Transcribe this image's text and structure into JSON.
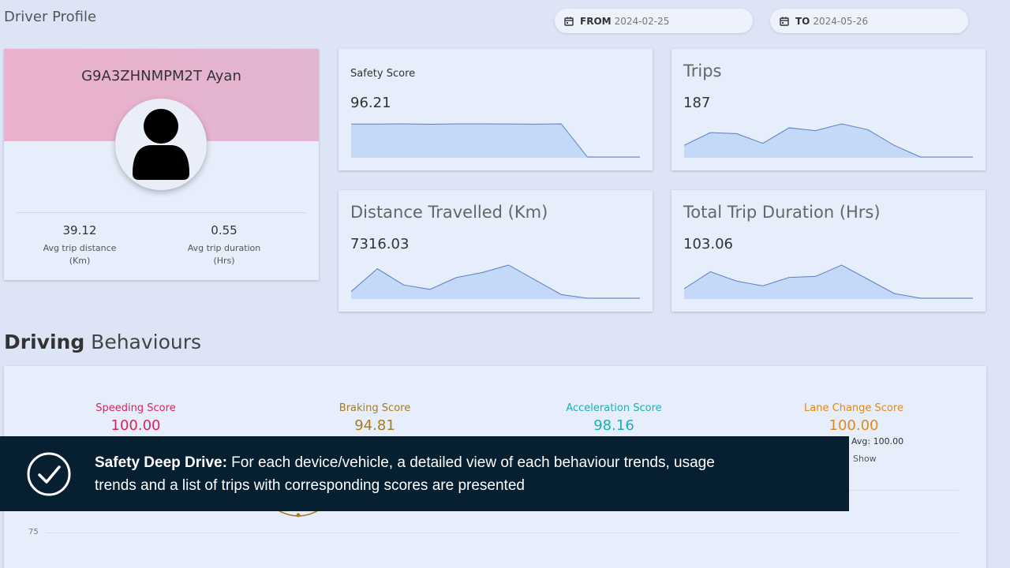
{
  "page": {
    "title": "Driver Profile"
  },
  "date_range": {
    "from_label": "FROM",
    "from_value": "2024-02-25",
    "to_label": "TO",
    "to_value": "2024-05-26",
    "icon": "calendar-icon"
  },
  "profile": {
    "name": "G9A3ZHNMPM2T Ayan",
    "avatar_icon": "user-avatar-icon",
    "stats": [
      {
        "value": "39.12",
        "label_line1": "Avg trip distance",
        "label_line2": "(Km)"
      },
      {
        "value": "0.55",
        "label_line1": "Avg trip duration",
        "label_line2": "(Hrs)"
      }
    ]
  },
  "metrics": {
    "safety": {
      "title": "Safety Score",
      "value": "96.21",
      "trend": [
        95,
        95,
        95.5,
        94.5,
        95.5,
        95.5,
        95.2,
        94.8,
        95.6,
        0,
        0,
        0
      ]
    },
    "trips": {
      "title": "Trips",
      "value": "187",
      "trend": [
        12,
        25,
        24,
        14,
        30,
        27,
        34,
        28,
        12,
        0,
        0,
        0
      ]
    },
    "distance": {
      "title": "Distance Travelled (Km)",
      "value": "7316.03",
      "trend": [
        9,
        40,
        18,
        12,
        28,
        35,
        45,
        25,
        5,
        0,
        0,
        0
      ]
    },
    "duration": {
      "title": "Total Trip Duration (Hrs)",
      "value": "103.06",
      "trend": [
        10,
        28,
        18,
        13,
        22,
        23,
        35,
        20,
        5,
        0,
        0,
        0
      ]
    }
  },
  "behaviours": {
    "heading_bold": "Driving",
    "heading_light": "Behaviours",
    "scores": [
      {
        "name": "Speeding Score",
        "value": "100.00"
      },
      {
        "name": "Braking Score",
        "value": "94.81"
      },
      {
        "name": "Acceleration Score",
        "value": "98.16"
      },
      {
        "name": "Lane Change Score",
        "value": "100.00"
      }
    ],
    "avg_label": "Avg: 100.00",
    "show_label": "Show",
    "axis_tick": "75"
  },
  "toast": {
    "icon": "check-circle-icon",
    "title": "Safety Deep Drive:",
    "body": " For each device/vehicle, a detailed view of each behaviour trends, usage trends and a list of trips with corresponding scores are presented"
  },
  "colors": {
    "spark_fill": "#c3d9f7",
    "spark_line": "#5b7fc7",
    "toast_bg": "#062032"
  }
}
